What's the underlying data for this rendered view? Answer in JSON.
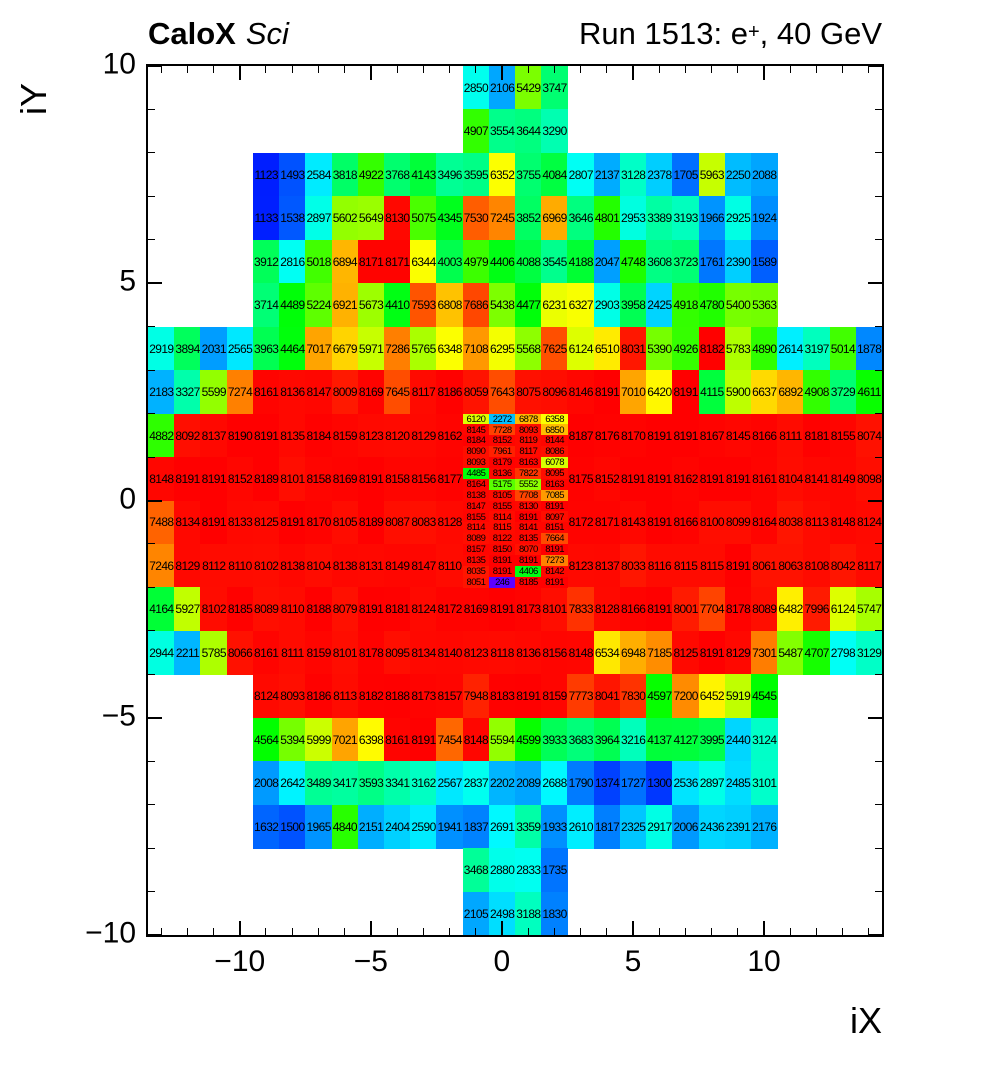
{
  "title": {
    "left_bold": "CaloX",
    "left_italic": "Sci",
    "right_prefix": "Run 1513: e",
    "right_sup": "+",
    "right_suffix": ", 40 GeV"
  },
  "x_axis": {
    "title": "iX",
    "range": [
      -13.5,
      14.5
    ],
    "major_ticks": [
      {
        "v": -10,
        "label": "−10"
      },
      {
        "v": -5,
        "label": "−5"
      },
      {
        "v": 0,
        "label": "0"
      },
      {
        "v": 5,
        "label": "5"
      },
      {
        "v": 10,
        "label": "10"
      }
    ]
  },
  "y_axis": {
    "title": "iY",
    "range": [
      -10,
      10
    ],
    "major_ticks": [
      {
        "v": -10,
        "label": "−10"
      },
      {
        "v": -5,
        "label": "−5"
      },
      {
        "v": 0,
        "label": "0"
      },
      {
        "v": 5,
        "label": "5"
      },
      {
        "v": 10,
        "label": "10"
      }
    ]
  },
  "palette": {
    "type": "rainbow",
    "hue_max": 270,
    "zmin": 0,
    "zmax": 8191
  },
  "chart_data": {
    "type": "heatmap",
    "title": "CaloX Sci — Run 1513: e+, 40 GeV",
    "xlabel": "iX",
    "ylabel": "iY",
    "xlim": [
      -13.5,
      14.5
    ],
    "ylim": [
      -10,
      10
    ],
    "grid": false,
    "segments": [
      {
        "iy": 9,
        "ix0": -1,
        "values": [
          2850,
          2106,
          5429,
          3747
        ]
      },
      {
        "iy": 8,
        "ix0": -1,
        "values": [
          4907,
          3554,
          3644,
          3290
        ]
      },
      {
        "iy": 7,
        "ix0": -9,
        "values": [
          1123,
          1493,
          2584,
          3818,
          4922,
          3768,
          4143,
          3496,
          3595,
          6352,
          3755,
          4084,
          2807,
          2137,
          3128,
          2378,
          1705,
          5963,
          2250,
          2088
        ]
      },
      {
        "iy": 6,
        "ix0": -9,
        "values": [
          1133,
          1538,
          2897,
          5602,
          5649,
          8130,
          5075,
          4345,
          7530,
          7245,
          3852,
          6969,
          3646,
          4801,
          2953,
          3389,
          3193,
          1966,
          2925,
          1924
        ]
      },
      {
        "iy": 5,
        "ix0": -9,
        "values": [
          3912,
          2816,
          5018,
          6894,
          8171,
          8171,
          6344,
          4003,
          4979,
          4406,
          4088,
          3545,
          4188,
          2047,
          4748,
          3608,
          3723,
          1761,
          2390,
          1589
        ]
      },
      {
        "iy": 4,
        "ix0": -9,
        "values": [
          3714,
          4489,
          5224,
          6921,
          5673,
          4410,
          7593,
          6808,
          7686,
          5438,
          4477,
          6231,
          6327,
          2903,
          3958,
          2425,
          4918,
          4780,
          5400,
          5363
        ]
      },
      {
        "iy": 3,
        "ix0": -13,
        "values": [
          2919,
          3894,
          2031,
          2565,
          3963,
          4464,
          7017,
          6679,
          5971,
          7286,
          5765,
          6348,
          7108,
          6295,
          5568,
          7625,
          6124,
          6510,
          8031,
          5390,
          4926,
          8182,
          5783,
          4890,
          2614,
          3197,
          5014,
          1878
        ]
      },
      {
        "iy": 2,
        "ix0": -13,
        "values": [
          2183,
          3327,
          5599,
          7274,
          8161,
          8136,
          8147,
          8009,
          8169,
          7645,
          8117,
          8186,
          8059,
          7643,
          8075,
          8096,
          8146,
          8191,
          7010,
          6420,
          8191,
          4115,
          5900,
          6637,
          6892,
          4908,
          3729,
          4611
        ]
      },
      {
        "iy": 1,
        "ix0": -13,
        "values": [
          4882,
          8092,
          8137,
          8190,
          8191,
          8135,
          8184,
          8159,
          8123,
          8120,
          8129,
          8162
        ]
      },
      {
        "iy": 1,
        "ix0": 3,
        "values": [
          8187,
          8176,
          8170,
          8191,
          8191,
          8167,
          8145,
          8166,
          8111,
          8181,
          8155,
          8074
        ]
      },
      {
        "iy": 0,
        "ix0": -13,
        "values": [
          8148,
          8191,
          8191,
          8152,
          8189,
          8101,
          8158,
          8169,
          8191,
          8158,
          8156,
          8177
        ]
      },
      {
        "iy": 0,
        "ix0": 3,
        "values": [
          8175,
          8152,
          8191,
          8191,
          8162,
          8191,
          8191,
          8161,
          8104,
          8141,
          8149,
          8098
        ]
      },
      {
        "iy": -1,
        "ix0": -13,
        "values": [
          7488,
          8134,
          8191,
          8133,
          8125,
          8191,
          8170,
          8105,
          8189,
          8087,
          8083,
          8128
        ]
      },
      {
        "iy": -1,
        "ix0": 3,
        "values": [
          8172,
          8171,
          8143,
          8191,
          8166,
          8100,
          8099,
          8164,
          8038,
          8113,
          8148,
          8124
        ]
      },
      {
        "iy": -2,
        "ix0": -13,
        "values": [
          7246,
          8129,
          8112,
          8110,
          8102,
          8138,
          8104,
          8138,
          8131,
          8149,
          8147,
          8110
        ]
      },
      {
        "iy": -2,
        "ix0": 3,
        "values": [
          8123,
          8137,
          8033,
          8116,
          8115,
          8115,
          8191,
          8061,
          8063,
          8108,
          8042,
          8117
        ]
      },
      {
        "iy": -3,
        "ix0": -13,
        "values": [
          4164,
          5927,
          8102,
          8185,
          8089,
          8110,
          8188,
          8079,
          8191,
          8181,
          8124,
          8172,
          8169,
          8191,
          8173,
          8101,
          7833,
          8128,
          8166,
          8191,
          8001,
          7704,
          8178,
          8089,
          6482,
          7996,
          6124,
          5747
        ]
      },
      {
        "iy": -4,
        "ix0": -13,
        "values": [
          2944,
          2211,
          5785,
          8066,
          8161,
          8111,
          8159,
          8101,
          8178,
          8095,
          8134,
          8140,
          8123,
          8118,
          8136,
          8156,
          8148,
          6534,
          6948,
          7185,
          8125,
          8191,
          8129,
          7301,
          5487,
          4707,
          2798,
          3129
        ]
      },
      {
        "iy": -5,
        "ix0": -9,
        "values": [
          8124,
          8093,
          8186,
          8113,
          8182,
          8188,
          8173,
          8157,
          7948,
          8183,
          8191,
          8159,
          7773,
          8041,
          7830,
          4597,
          7200,
          6452,
          5919,
          4545
        ]
      },
      {
        "iy": -6,
        "ix0": -9,
        "values": [
          4564,
          5394,
          5999,
          7021,
          6398,
          8161,
          8191,
          7454,
          8148,
          5594,
          4599,
          3933,
          3683,
          3964,
          3216,
          4137,
          4127,
          3995,
          2440,
          3124
        ]
      },
      {
        "iy": -7,
        "ix0": -9,
        "values": [
          2008,
          2642,
          3489,
          3417,
          3593,
          3341,
          3162,
          2567,
          2837,
          2202,
          2089,
          2688,
          1790,
          1374,
          1727,
          1300,
          2536,
          2897,
          2485,
          3101
        ]
      },
      {
        "iy": -8,
        "ix0": -9,
        "values": [
          1632,
          1500,
          1965,
          4840,
          2151,
          2404,
          2590,
          1941,
          1837,
          2691,
          3359,
          1933,
          2610,
          1817,
          2325,
          2917,
          2006,
          2436,
          2391,
          2176
        ]
      },
      {
        "iy": -9,
        "ix0": -1,
        "values": [
          3468,
          2880,
          2833,
          1735
        ]
      },
      {
        "iy": -10,
        "ix0": -1,
        "values": [
          2105,
          2498,
          3188,
          1830
        ]
      }
    ],
    "subgrid": {
      "ix0": -1,
      "iy_top": 2.0,
      "cell_w": 1.0,
      "cell_h": 0.25,
      "rows": [
        [
          6120,
          2272,
          6878,
          6358
        ],
        [
          8145,
          7728,
          8093,
          6850
        ],
        [
          8184,
          8152,
          8119,
          8144
        ],
        [
          8090,
          7961,
          8117,
          8086
        ],
        [
          8093,
          8179,
          8163,
          6078
        ],
        [
          4485,
          8136,
          7822,
          8095
        ],
        [
          8164,
          5175,
          5552,
          8163
        ],
        [
          8138,
          8105,
          7708,
          7085
        ],
        [
          8147,
          8155,
          8130,
          8191
        ],
        [
          8155,
          8114,
          8191,
          8097
        ],
        [
          8114,
          8115,
          8141,
          8151
        ],
        [
          8089,
          8122,
          8135,
          7664
        ],
        [
          8157,
          8150,
          8070,
          8191
        ],
        [
          8135,
          8191,
          8191,
          7273
        ],
        [
          8035,
          8191,
          4406,
          8142
        ],
        [
          8051,
          246,
          8185,
          8191
        ]
      ]
    }
  }
}
